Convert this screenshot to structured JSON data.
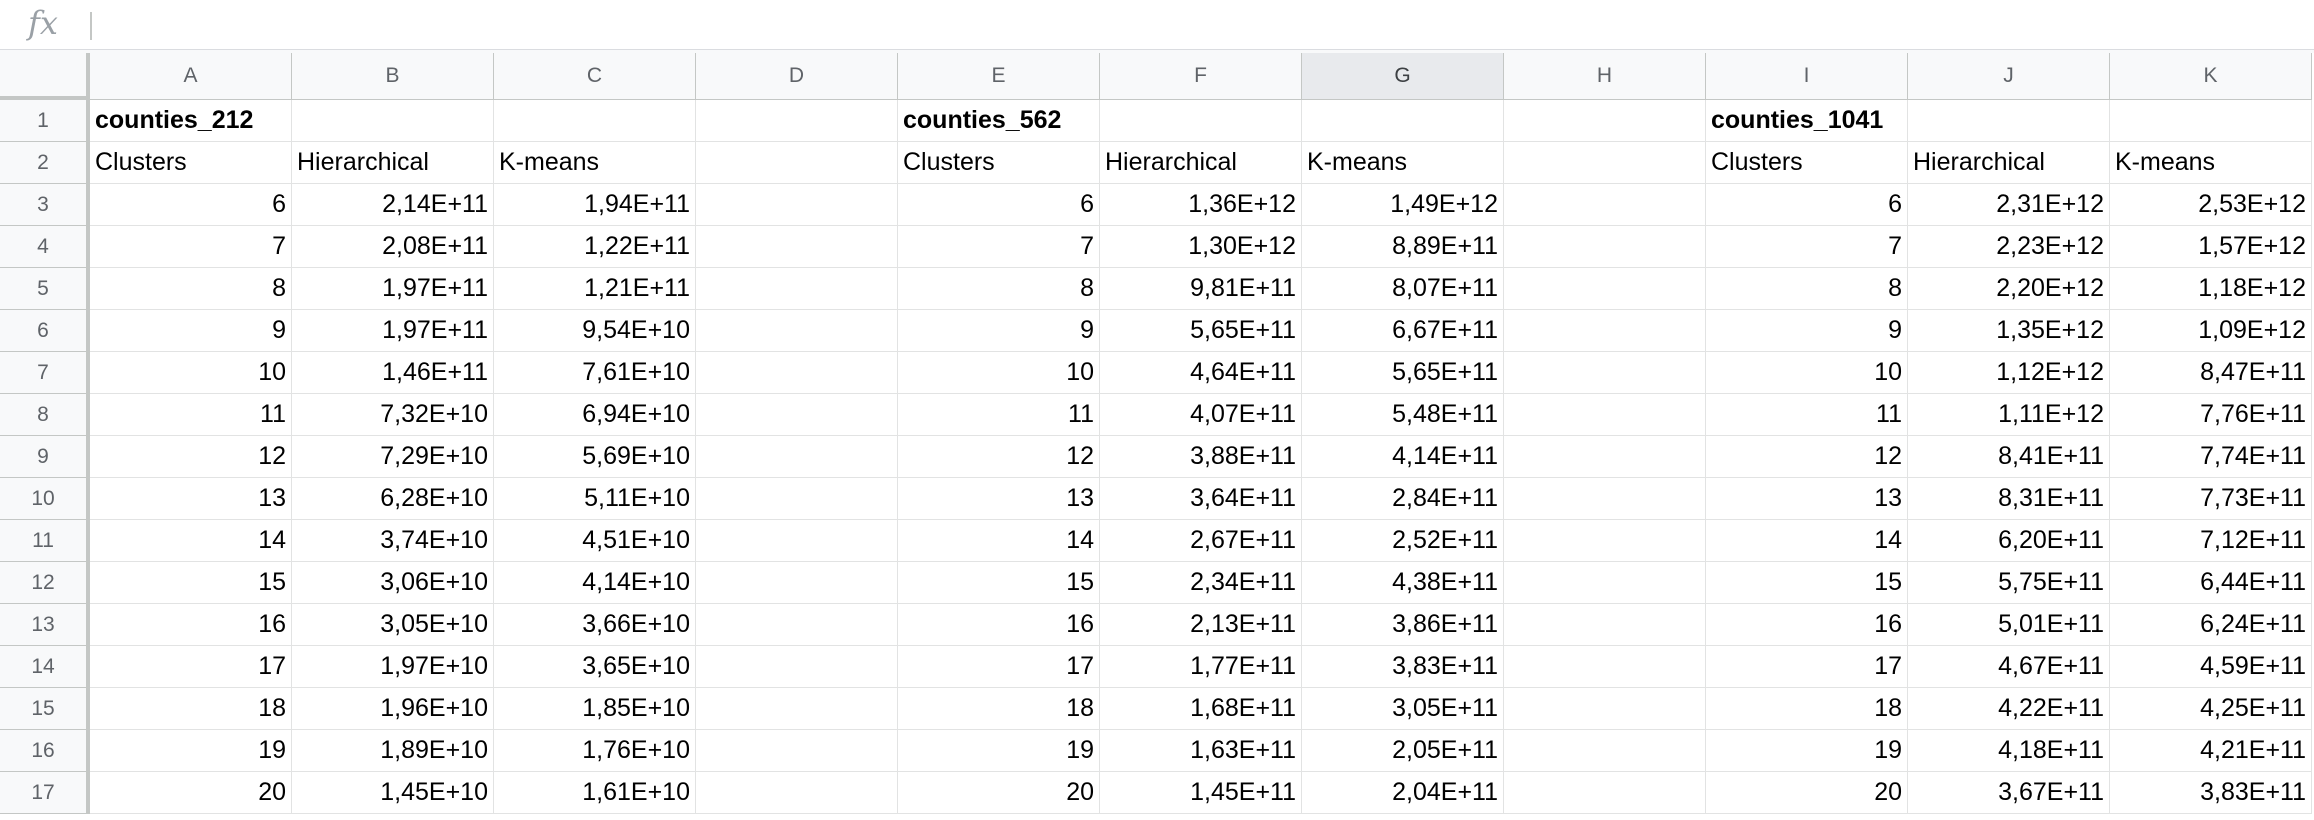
{
  "formula_bar": {
    "fx_label": "fx",
    "value": ""
  },
  "columns": [
    "A",
    "B",
    "C",
    "D",
    "E",
    "F",
    "G",
    "H",
    "I",
    "J",
    "K"
  ],
  "selected_column": "G",
  "rows": [
    [
      "counties_212",
      "",
      "",
      "",
      "counties_562",
      "",
      "",
      "",
      "counties_1041",
      "",
      ""
    ],
    [
      "Clusters",
      "Hierarchical",
      "K-means",
      "",
      "Clusters",
      "Hierarchical",
      "K-means",
      "",
      "Clusters",
      "Hierarchical",
      "K-means"
    ],
    [
      "6",
      "2,14E+11",
      "1,94E+11",
      "",
      "6",
      "1,36E+12",
      "1,49E+12",
      "",
      "6",
      "2,31E+12",
      "2,53E+12"
    ],
    [
      "7",
      "2,08E+11",
      "1,22E+11",
      "",
      "7",
      "1,30E+12",
      "8,89E+11",
      "",
      "7",
      "2,23E+12",
      "1,57E+12"
    ],
    [
      "8",
      "1,97E+11",
      "1,21E+11",
      "",
      "8",
      "9,81E+11",
      "8,07E+11",
      "",
      "8",
      "2,20E+12",
      "1,18E+12"
    ],
    [
      "9",
      "1,97E+11",
      "9,54E+10",
      "",
      "9",
      "5,65E+11",
      "6,67E+11",
      "",
      "9",
      "1,35E+12",
      "1,09E+12"
    ],
    [
      "10",
      "1,46E+11",
      "7,61E+10",
      "",
      "10",
      "4,64E+11",
      "5,65E+11",
      "",
      "10",
      "1,12E+12",
      "8,47E+11"
    ],
    [
      "11",
      "7,32E+10",
      "6,94E+10",
      "",
      "11",
      "4,07E+11",
      "5,48E+11",
      "",
      "11",
      "1,11E+12",
      "7,76E+11"
    ],
    [
      "12",
      "7,29E+10",
      "5,69E+10",
      "",
      "12",
      "3,88E+11",
      "4,14E+11",
      "",
      "12",
      "8,41E+11",
      "7,74E+11"
    ],
    [
      "13",
      "6,28E+10",
      "5,11E+10",
      "",
      "13",
      "3,64E+11",
      "2,84E+11",
      "",
      "13",
      "8,31E+11",
      "7,73E+11"
    ],
    [
      "14",
      "3,74E+10",
      "4,51E+10",
      "",
      "14",
      "2,67E+11",
      "2,52E+11",
      "",
      "14",
      "6,20E+11",
      "7,12E+11"
    ],
    [
      "15",
      "3,06E+10",
      "4,14E+10",
      "",
      "15",
      "2,34E+11",
      "4,38E+11",
      "",
      "15",
      "5,75E+11",
      "6,44E+11"
    ],
    [
      "16",
      "3,05E+10",
      "3,66E+10",
      "",
      "16",
      "2,13E+11",
      "3,86E+11",
      "",
      "16",
      "5,01E+11",
      "6,24E+11"
    ],
    [
      "17",
      "1,97E+10",
      "3,65E+10",
      "",
      "17",
      "1,77E+11",
      "3,83E+11",
      "",
      "17",
      "4,67E+11",
      "4,59E+11"
    ],
    [
      "18",
      "1,96E+10",
      "1,85E+10",
      "",
      "18",
      "1,68E+11",
      "3,05E+11",
      "",
      "18",
      "4,22E+11",
      "4,25E+11"
    ],
    [
      "19",
      "1,89E+10",
      "1,76E+10",
      "",
      "19",
      "1,63E+11",
      "2,05E+11",
      "",
      "19",
      "4,18E+11",
      "4,21E+11"
    ],
    [
      "20",
      "1,45E+10",
      "1,61E+10",
      "",
      "20",
      "1,45E+11",
      "2,04E+11",
      "",
      "20",
      "3,67E+11",
      "3,83E+11"
    ]
  ]
}
